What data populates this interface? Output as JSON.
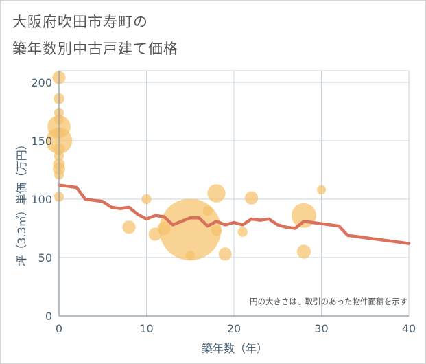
{
  "title_line1": "大阪府吹田市寿町の",
  "title_line2": "築年数別中古戸建て価格",
  "chart_data": {
    "type": "scatter",
    "xlabel": "築年数（年）",
    "ylabel": "坪（3.3㎡）単価（万円）",
    "xlim": [
      0,
      40
    ],
    "ylim": [
      0,
      210
    ],
    "xticks": [
      0,
      10,
      20,
      30,
      40
    ],
    "yticks": [
      0,
      50,
      100,
      150,
      200
    ],
    "grid": true,
    "note": "円の大きさは、取引のあった物件面積を示す",
    "colors": {
      "bubble": "#f5c26b",
      "line": "#d9715c",
      "grid": "#c9d4de",
      "axis": "#9aa8b3"
    },
    "bubbles": [
      {
        "x": 0,
        "y": 204,
        "size": 1.6
      },
      {
        "x": 0,
        "y": 186,
        "size": 1.3
      },
      {
        "x": 0,
        "y": 174,
        "size": 1.2
      },
      {
        "x": 0,
        "y": 168,
        "size": 1.2
      },
      {
        "x": 0,
        "y": 162,
        "size": 2.8
      },
      {
        "x": 0,
        "y": 157,
        "size": 1.2
      },
      {
        "x": 0,
        "y": 150,
        "size": 3.2
      },
      {
        "x": 0,
        "y": 143,
        "size": 1.4
      },
      {
        "x": 0,
        "y": 137,
        "size": 1.2
      },
      {
        "x": 0,
        "y": 130,
        "size": 1.4
      },
      {
        "x": 0,
        "y": 126,
        "size": 1.5
      },
      {
        "x": 0,
        "y": 121,
        "size": 1.2
      },
      {
        "x": 0,
        "y": 102,
        "size": 1.2
      },
      {
        "x": 8,
        "y": 76,
        "size": 1.6
      },
      {
        "x": 10,
        "y": 100,
        "size": 1.2
      },
      {
        "x": 11,
        "y": 70,
        "size": 1.6
      },
      {
        "x": 12,
        "y": 75,
        "size": 1.6
      },
      {
        "x": 15,
        "y": 74,
        "size": 7.5
      },
      {
        "x": 15,
        "y": 52,
        "size": 1.1
      },
      {
        "x": 17,
        "y": 90,
        "size": 1.2
      },
      {
        "x": 18,
        "y": 105,
        "size": 2.2
      },
      {
        "x": 18,
        "y": 73,
        "size": 1.3
      },
      {
        "x": 19,
        "y": 53,
        "size": 1.6
      },
      {
        "x": 21,
        "y": 72,
        "size": 1.2
      },
      {
        "x": 22,
        "y": 101,
        "size": 1.6
      },
      {
        "x": 28,
        "y": 86,
        "size": 3.0
      },
      {
        "x": 28,
        "y": 55,
        "size": 1.7
      },
      {
        "x": 30,
        "y": 108,
        "size": 1.1
      }
    ],
    "trend": {
      "x": [
        0,
        1,
        2,
        3,
        4,
        5,
        6,
        7,
        8,
        9,
        10,
        11,
        12,
        13,
        14,
        15,
        16,
        17,
        18,
        19,
        20,
        21,
        22,
        23,
        24,
        25,
        26,
        27,
        28,
        29,
        30,
        31,
        32,
        33,
        34,
        35,
        36,
        37,
        38,
        39,
        40
      ],
      "y": [
        112,
        111,
        110,
        100,
        99,
        98,
        93,
        92,
        93,
        87,
        83,
        86,
        85,
        78,
        81,
        84,
        84,
        77,
        81,
        78,
        80,
        78,
        83,
        82,
        83,
        78,
        76,
        75,
        81,
        80,
        79,
        78,
        77,
        69,
        68,
        67,
        66,
        65,
        64,
        63,
        62
      ]
    }
  }
}
